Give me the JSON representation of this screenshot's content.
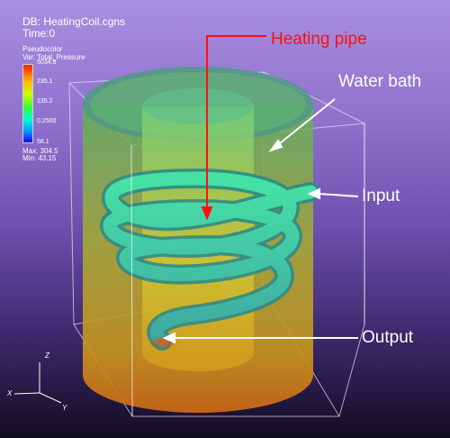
{
  "hud": {
    "db_label": "DB: HeatingCoil.cgns",
    "time_label": "Time:0"
  },
  "legend": {
    "plot_line1": "Pseudocolor",
    "plot_line2": "Var: Total_Pressure",
    "ticks": [
      "5034.5",
      "235.1",
      "135.2",
      "0.2500",
      "58.1"
    ],
    "max_label": "Max: 304.5",
    "min_label": "Min: 43.15",
    "colors": [
      "#ff1f00",
      "#ffbe00",
      "#33ff33",
      "#00ffd5",
      "#1f00ff"
    ]
  },
  "annotations": {
    "heating_pipe": "Heating pipe",
    "water_bath": "Water bath",
    "input": "Input",
    "output": "Output"
  },
  "axes": {
    "x": "X",
    "y": "Y",
    "z": "Z"
  }
}
